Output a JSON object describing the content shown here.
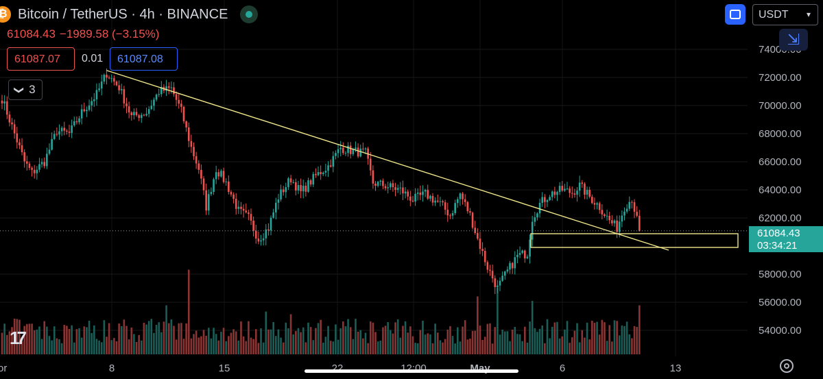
{
  "header": {
    "logo_glyph": "₿",
    "title": "Bitcoin / TetherUS · 4h · BINANCE",
    "last_price": "61084.43",
    "change": "−1989.58 (−3.15%)"
  },
  "order_buttons": {
    "bid": "61087.07",
    "spread": "0.01",
    "ask": "61087.08"
  },
  "indicators": {
    "chevron": "❯",
    "count": "3"
  },
  "toolbar": {
    "currency": "USDT",
    "collapse_glyph": "⇲"
  },
  "price_label": {
    "price": "61084.43",
    "countdown": "03:34:21"
  },
  "tv_logo": "17",
  "colors": {
    "up": "#26a69a",
    "down": "#ef5350",
    "trendline": "#f0e68c",
    "zone": "#f0e68c",
    "accent": "#2962ff"
  },
  "chart_data": {
    "type": "candlestick",
    "symbol": "Bitcoin / TetherUS",
    "interval": "4h",
    "y_ticks": [
      "74000.00",
      "72000.00",
      "70000.00",
      "68000.00",
      "66000.00",
      "64000.00",
      "62000.00",
      "58000.00",
      "56000.00",
      "54000.00"
    ],
    "x_ticks": [
      "or",
      "8",
      "15",
      "22",
      "12:00",
      "May",
      "6",
      "13"
    ],
    "ylim": [
      52000,
      76500
    ],
    "x_range_candles": [
      0,
      258
    ],
    "last_price": 61084.43,
    "anchors": [
      {
        "i": 0,
        "p": 70500
      },
      {
        "i": 5,
        "p": 68000
      },
      {
        "i": 9,
        "p": 66000
      },
      {
        "i": 12,
        "p": 65200
      },
      {
        "i": 17,
        "p": 66000
      },
      {
        "i": 22,
        "p": 68200
      },
      {
        "i": 27,
        "p": 68000
      },
      {
        "i": 32,
        "p": 69500
      },
      {
        "i": 38,
        "p": 70800
      },
      {
        "i": 42,
        "p": 72300
      },
      {
        "i": 47,
        "p": 71300
      },
      {
        "i": 52,
        "p": 69200
      },
      {
        "i": 58,
        "p": 69500
      },
      {
        "i": 63,
        "p": 71000
      },
      {
        "i": 68,
        "p": 71200
      },
      {
        "i": 72,
        "p": 69600
      },
      {
        "i": 76,
        "p": 67000
      },
      {
        "i": 79,
        "p": 65500
      },
      {
        "i": 82,
        "p": 62800
      },
      {
        "i": 86,
        "p": 65500
      },
      {
        "i": 90,
        "p": 64500
      },
      {
        "i": 95,
        "p": 62500
      },
      {
        "i": 99,
        "p": 62000
      },
      {
        "i": 103,
        "p": 60500
      },
      {
        "i": 107,
        "p": 61300
      },
      {
        "i": 111,
        "p": 63500
      },
      {
        "i": 116,
        "p": 64800
      },
      {
        "i": 120,
        "p": 63800
      },
      {
        "i": 126,
        "p": 65000
      },
      {
        "i": 131,
        "p": 65700
      },
      {
        "i": 136,
        "p": 67000
      },
      {
        "i": 140,
        "p": 66800
      },
      {
        "i": 146,
        "p": 66600
      },
      {
        "i": 149,
        "p": 64500
      },
      {
        "i": 154,
        "p": 64300
      },
      {
        "i": 160,
        "p": 64000
      },
      {
        "i": 165,
        "p": 63300
      },
      {
        "i": 170,
        "p": 63700
      },
      {
        "i": 176,
        "p": 63000
      },
      {
        "i": 180,
        "p": 62200
      },
      {
        "i": 184,
        "p": 63700
      },
      {
        "i": 188,
        "p": 62200
      },
      {
        "i": 191,
        "p": 60500
      },
      {
        "i": 195,
        "p": 58500
      },
      {
        "i": 199,
        "p": 57000
      },
      {
        "i": 203,
        "p": 58200
      },
      {
        "i": 207,
        "p": 59300
      },
      {
        "i": 211,
        "p": 59500
      },
      {
        "i": 213,
        "p": 62000
      },
      {
        "i": 216,
        "p": 63000
      },
      {
        "i": 220,
        "p": 63700
      },
      {
        "i": 225,
        "p": 64000
      },
      {
        "i": 229,
        "p": 63800
      },
      {
        "i": 232,
        "p": 64300
      },
      {
        "i": 236,
        "p": 63500
      },
      {
        "i": 240,
        "p": 62800
      },
      {
        "i": 244,
        "p": 61800
      },
      {
        "i": 247,
        "p": 61300
      },
      {
        "i": 250,
        "p": 62800
      },
      {
        "i": 253,
        "p": 63400
      },
      {
        "i": 256,
        "p": 61084
      }
    ],
    "volume_spikes": [
      {
        "i": 75,
        "v": 0.95
      },
      {
        "i": 66,
        "v": 0.55
      },
      {
        "i": 106,
        "v": 0.48
      },
      {
        "i": 116,
        "v": 0.45
      },
      {
        "i": 191,
        "v": 0.65
      },
      {
        "i": 199,
        "v": 0.75
      },
      {
        "i": 213,
        "v": 0.6
      },
      {
        "i": 256,
        "v": 0.55
      },
      {
        "i": 5,
        "v": 0.4
      },
      {
        "i": 43,
        "v": 0.35
      }
    ],
    "trendline": {
      "from": {
        "i": 42,
        "p": 72500
      },
      "to": {
        "i": 265,
        "p": 60300
      }
    },
    "support_zone": {
      "i_start": 211,
      "i_end": 295,
      "p_low": 60000,
      "p_high": 60900
    }
  }
}
